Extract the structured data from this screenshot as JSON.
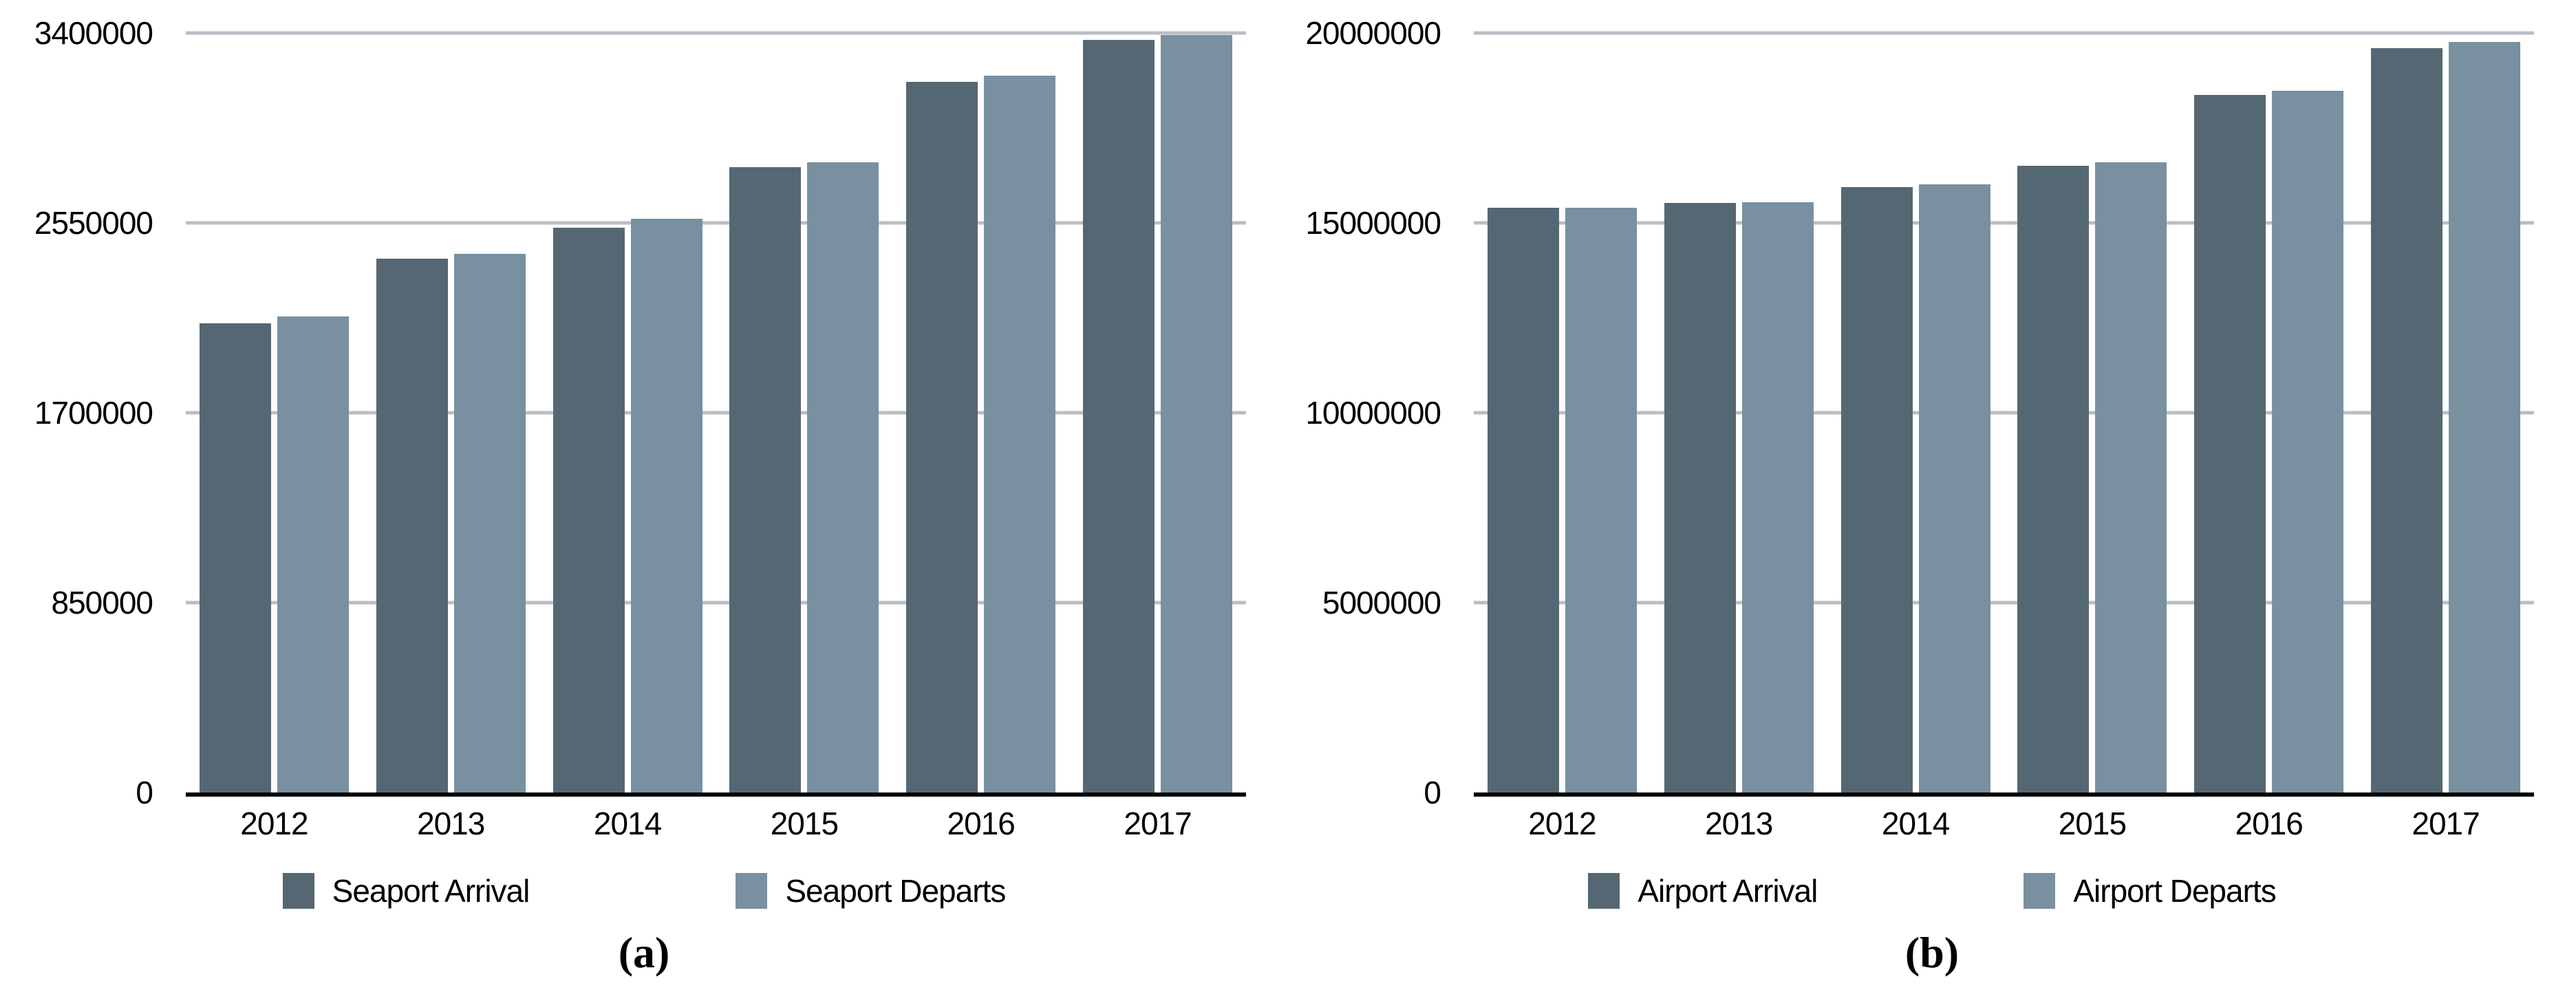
{
  "figure": {
    "background": "#ffffff",
    "grid_color": "#b9bec6",
    "axis_color": "#000000",
    "text_color": "#000000",
    "bar_dark": "#556772",
    "bar_light": "#7890A0"
  },
  "chart_data": [
    {
      "type": "bar",
      "caption": "(a)",
      "title": "",
      "xlabel": "",
      "ylabel": "",
      "y_max": 3400000,
      "y_ticks": [
        3400000,
        2550000,
        1700000,
        850000,
        0
      ],
      "grid": "horizontal",
      "legend_position": "bottom",
      "categories": [
        "2012",
        "2013",
        "2014",
        "2015",
        "2016",
        "2017"
      ],
      "series": [
        {
          "name": "Seaport Arrival",
          "color": "#556772",
          "values": [
            2100000,
            2390000,
            2530000,
            2800000,
            3180000,
            3370000
          ]
        },
        {
          "name": "Seaport Departs",
          "color": "#7890A0",
          "values": [
            2130000,
            2410000,
            2570000,
            2820000,
            3210000,
            3390000
          ]
        }
      ]
    },
    {
      "type": "bar",
      "caption": "(b)",
      "title": "",
      "xlabel": "",
      "ylabel": "",
      "y_max": 20000000,
      "y_ticks": [
        20000000,
        15000000,
        10000000,
        5000000,
        0
      ],
      "grid": "horizontal",
      "legend_position": "bottom",
      "categories": [
        "2012",
        "2013",
        "2014",
        "2015",
        "2016",
        "2017"
      ],
      "series": [
        {
          "name": "Airport Arrival",
          "color": "#556772",
          "values": [
            15390000,
            15530000,
            15950000,
            16510000,
            18370000,
            19600000
          ]
        },
        {
          "name": "Airport Departs",
          "color": "#7890A0",
          "values": [
            15390000,
            15540000,
            16020000,
            16600000,
            18470000,
            19770000
          ]
        }
      ]
    }
  ]
}
